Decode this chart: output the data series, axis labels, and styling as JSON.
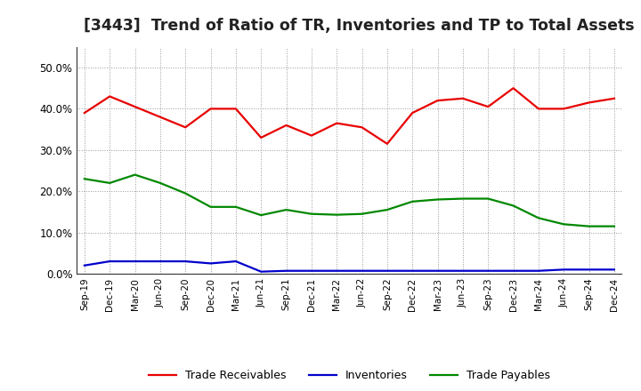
{
  "title": "[3443]  Trend of Ratio of TR, Inventories and TP to Total Assets",
  "x_labels": [
    "Sep-19",
    "Dec-19",
    "Mar-20",
    "Jun-20",
    "Sep-20",
    "Dec-20",
    "Mar-21",
    "Jun-21",
    "Sep-21",
    "Dec-21",
    "Mar-22",
    "Jun-22",
    "Sep-22",
    "Dec-22",
    "Mar-23",
    "Jun-23",
    "Sep-23",
    "Dec-23",
    "Mar-24",
    "Jun-24",
    "Sep-24",
    "Dec-24"
  ],
  "trade_receivables": [
    0.39,
    0.43,
    0.405,
    0.38,
    0.355,
    0.4,
    0.4,
    0.33,
    0.36,
    0.335,
    0.365,
    0.355,
    0.315,
    0.39,
    0.42,
    0.425,
    0.405,
    0.45,
    0.4,
    0.4,
    0.415,
    0.425
  ],
  "inventories": [
    0.02,
    0.03,
    0.03,
    0.03,
    0.03,
    0.025,
    0.03,
    0.005,
    0.007,
    0.007,
    0.007,
    0.007,
    0.007,
    0.007,
    0.007,
    0.007,
    0.007,
    0.007,
    0.007,
    0.01,
    0.01,
    0.01
  ],
  "trade_payables": [
    0.23,
    0.22,
    0.24,
    0.22,
    0.195,
    0.162,
    0.162,
    0.142,
    0.155,
    0.145,
    0.143,
    0.145,
    0.155,
    0.175,
    0.18,
    0.182,
    0.182,
    0.165,
    0.135,
    0.12,
    0.115,
    0.115
  ],
  "tr_color": "#e80000",
  "inv_color": "#0000cc",
  "tp_color": "#008800",
  "ylim": [
    0.0,
    0.55
  ],
  "yticks": [
    0.0,
    0.1,
    0.2,
    0.3,
    0.4,
    0.5
  ],
  "background_color": "#ffffff",
  "grid_color": "#999999",
  "title_fontsize": 12.5
}
